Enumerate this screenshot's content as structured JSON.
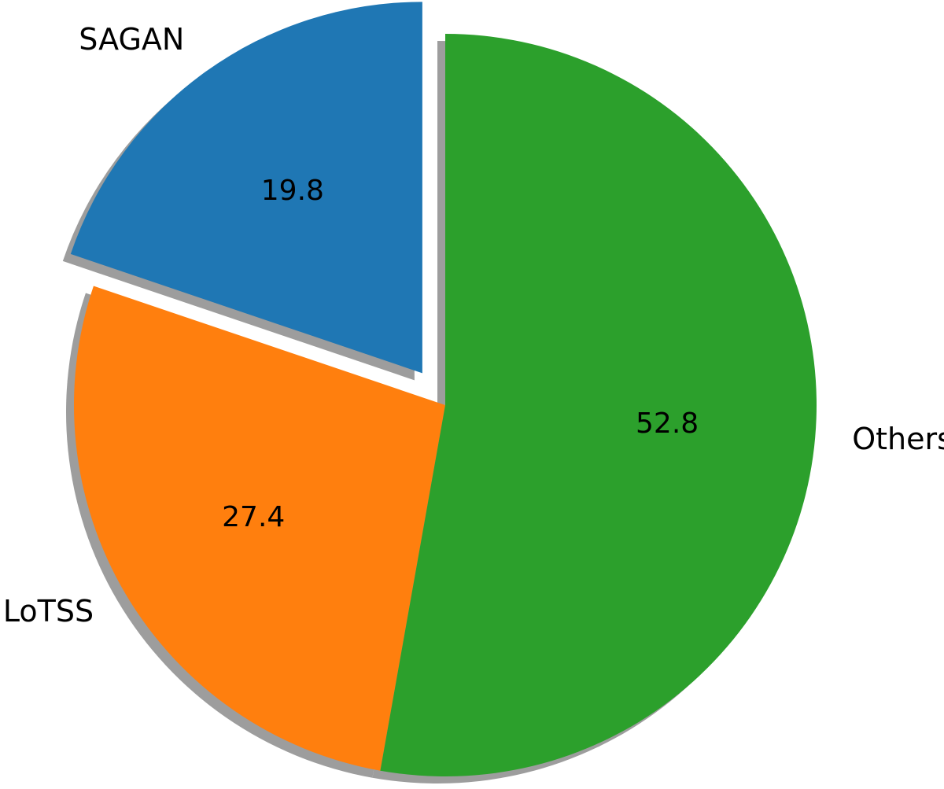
{
  "chart_data": {
    "type": "pie",
    "slices": [
      {
        "label": "SAGAN",
        "value": 19.8,
        "value_label": "19.8",
        "color": "#1f77b4",
        "explode": true
      },
      {
        "label": "LoTSS",
        "value": 27.4,
        "value_label": "27.4",
        "color": "#ff7f0e",
        "explode": false
      },
      {
        "label": "Others",
        "value": 52.8,
        "value_label": "52.8",
        "color": "#2ca02c",
        "explode": false
      }
    ],
    "start_angle": 90,
    "direction": "counterclockwise",
    "shadow": true,
    "shadow_color": "#8c8c8c"
  }
}
